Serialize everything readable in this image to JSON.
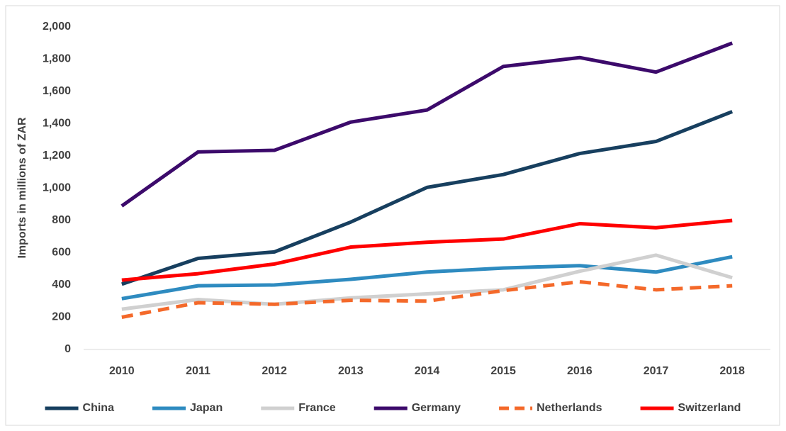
{
  "chart_data": {
    "type": "line",
    "ylabel": "Imports in millions of ZAR",
    "categories": [
      "2010",
      "2011",
      "2012",
      "2013",
      "2014",
      "2015",
      "2016",
      "2017",
      "2018"
    ],
    "series": [
      {
        "name": "China",
        "color": "#173f5f",
        "values": [
          405,
          565,
          605,
          790,
          1005,
          1085,
          1215,
          1290,
          1475
        ]
      },
      {
        "name": "Japan",
        "color": "#2e8bc0",
        "values": [
          315,
          395,
          400,
          435,
          480,
          505,
          520,
          480,
          575
        ]
      },
      {
        "name": "France",
        "color": "#d0d0d0",
        "values": [
          250,
          310,
          280,
          320,
          345,
          370,
          485,
          585,
          445
        ]
      },
      {
        "name": "Germany",
        "color": "#3c0a6b",
        "values": [
          890,
          1225,
          1235,
          1410,
          1485,
          1755,
          1810,
          1720,
          1900
        ]
      },
      {
        "name": "Netherlands",
        "color": "#f4692a",
        "line_style": "dashed",
        "values": [
          200,
          290,
          280,
          305,
          300,
          365,
          420,
          370,
          395
        ]
      },
      {
        "name": "Switzerland",
        "color": "#ff0000",
        "values": [
          430,
          470,
          530,
          635,
          665,
          685,
          780,
          755,
          800
        ]
      }
    ],
    "ylim": [
      0,
      2000
    ],
    "yticks": [
      0,
      200,
      400,
      600,
      800,
      {
        "value": 1000,
        "label": "1,000"
      },
      {
        "value": 1200,
        "label": "1,200"
      },
      {
        "value": 1400,
        "label": "1,400"
      },
      {
        "value": 1600,
        "label": "1,600"
      },
      {
        "value": 1800,
        "label": "1,800"
      },
      {
        "value": 2000,
        "label": "2,000"
      }
    ],
    "grid": false,
    "legend": "bottom"
  }
}
